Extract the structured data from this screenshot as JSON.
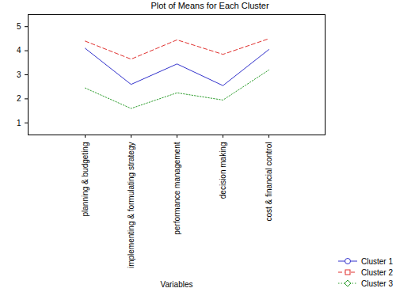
{
  "chart_data": {
    "type": "line",
    "title": "Plot of Means for Each Cluster",
    "x_label": "Variables",
    "categories": [
      "planning & budgeting",
      "implementing & formulating strategy",
      "performance management",
      "decision making",
      "cost & financial control"
    ],
    "series": [
      {
        "name": "Cluster 1",
        "color": "#3333cc",
        "line_style": "solid",
        "marker": "circle",
        "values": [
          4.1,
          2.6,
          3.45,
          2.55,
          4.05
        ]
      },
      {
        "name": "Cluster 2",
        "color": "#e0302e",
        "line_style": "dashed",
        "marker": "square",
        "values": [
          4.4,
          3.65,
          4.45,
          3.85,
          4.5
        ]
      },
      {
        "name": "Cluster 3",
        "color": "#2e9e2e",
        "line_style": "dotted",
        "marker": "diamond",
        "values": [
          2.45,
          1.6,
          2.25,
          1.95,
          3.2
        ]
      }
    ],
    "ylim": [
      0.5,
      5.5
    ],
    "yticks": [
      1,
      2,
      3,
      4,
      5
    ],
    "grid": false,
    "legend": "bottom-right"
  }
}
